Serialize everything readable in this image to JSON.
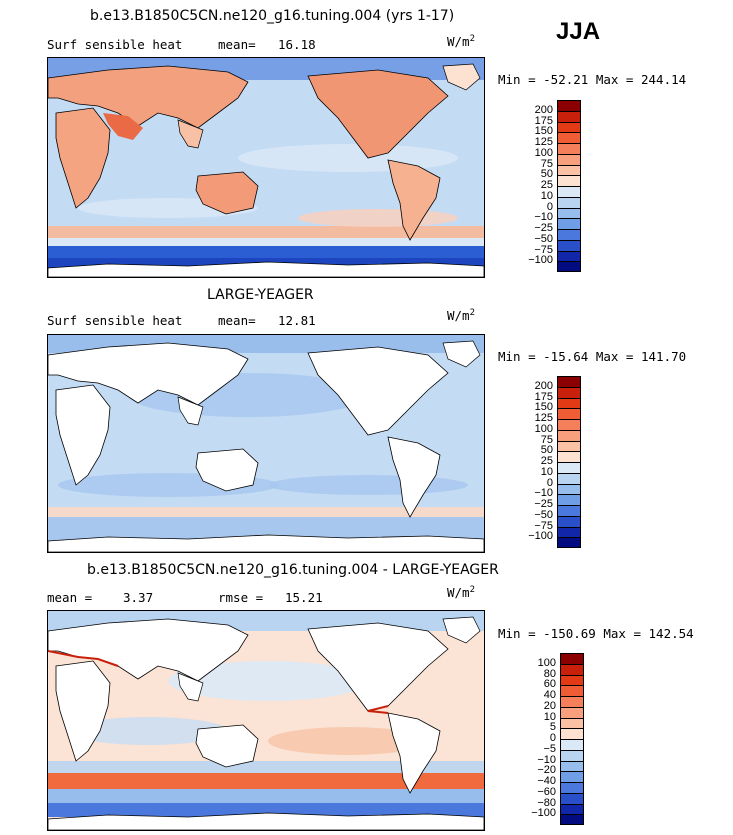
{
  "season": "JJA",
  "panels": [
    {
      "title": "b.e13.B1850C5CN.ne120_g16.tuning.004 (yrs 1-17)",
      "variable": "Surf sensible heat",
      "stat_label": "mean=",
      "stat_value": "16.18",
      "units_base": "W/m",
      "units_exp": "2",
      "minmax": "Min = -52.21 Max = 244.14",
      "colorbar": {
        "levels": [
          "200",
          "175",
          "150",
          "125",
          "100",
          "75",
          "50",
          "25",
          "10",
          "0",
          "−10",
          "−25",
          "−50",
          "−75",
          "−100"
        ],
        "colors": [
          "#8b0000",
          "#c8200a",
          "#e23a14",
          "#f05c34",
          "#f47f5a",
          "#f8a07e",
          "#fbc1a4",
          "#fde2d1",
          "#dbe9f7",
          "#b8d4f1",
          "#96bdec",
          "#6f9de6",
          "#4a78dc",
          "#2950c9",
          "#1126a8",
          "#020c80"
        ]
      }
    },
    {
      "title": "LARGE-YEAGER",
      "variable": "Surf sensible heat",
      "stat_label": "mean=",
      "stat_value": "12.81",
      "units_base": "W/m",
      "units_exp": "2",
      "minmax": "Min = -15.64 Max = 141.70",
      "colorbar": {
        "levels": [
          "200",
          "175",
          "150",
          "125",
          "100",
          "75",
          "50",
          "25",
          "10",
          "0",
          "−10",
          "−25",
          "−50",
          "−75",
          "−100"
        ],
        "colors": [
          "#8b0000",
          "#c8200a",
          "#e23a14",
          "#f05c34",
          "#f47f5a",
          "#f8a07e",
          "#fbc1a4",
          "#fde2d1",
          "#dbe9f7",
          "#b8d4f1",
          "#96bdec",
          "#6f9de6",
          "#4a78dc",
          "#2950c9",
          "#1126a8",
          "#020c80"
        ]
      }
    },
    {
      "title": "b.e13.B1850C5CN.ne120_g16.tuning.004 - LARGE-YEAGER",
      "stat1_label": "mean =",
      "stat1_value": "3.37",
      "stat2_label": "rmse =",
      "stat2_value": "15.21",
      "units_base": "W/m",
      "units_exp": "2",
      "minmax": "Min = -150.69 Max = 142.54",
      "colorbar": {
        "levels": [
          "100",
          "80",
          "60",
          "40",
          "20",
          "10",
          "5",
          "0",
          "−5",
          "−10",
          "−20",
          "−40",
          "−60",
          "−80",
          "−100"
        ],
        "colors": [
          "#8b0000",
          "#c8200a",
          "#e23a14",
          "#f05c34",
          "#f47f5a",
          "#f8a07e",
          "#fbc1a4",
          "#fde2d1",
          "#dbe9f7",
          "#b8d4f1",
          "#96bdec",
          "#6f9de6",
          "#4a78dc",
          "#2950c9",
          "#1126a8",
          "#020c80"
        ]
      }
    }
  ]
}
